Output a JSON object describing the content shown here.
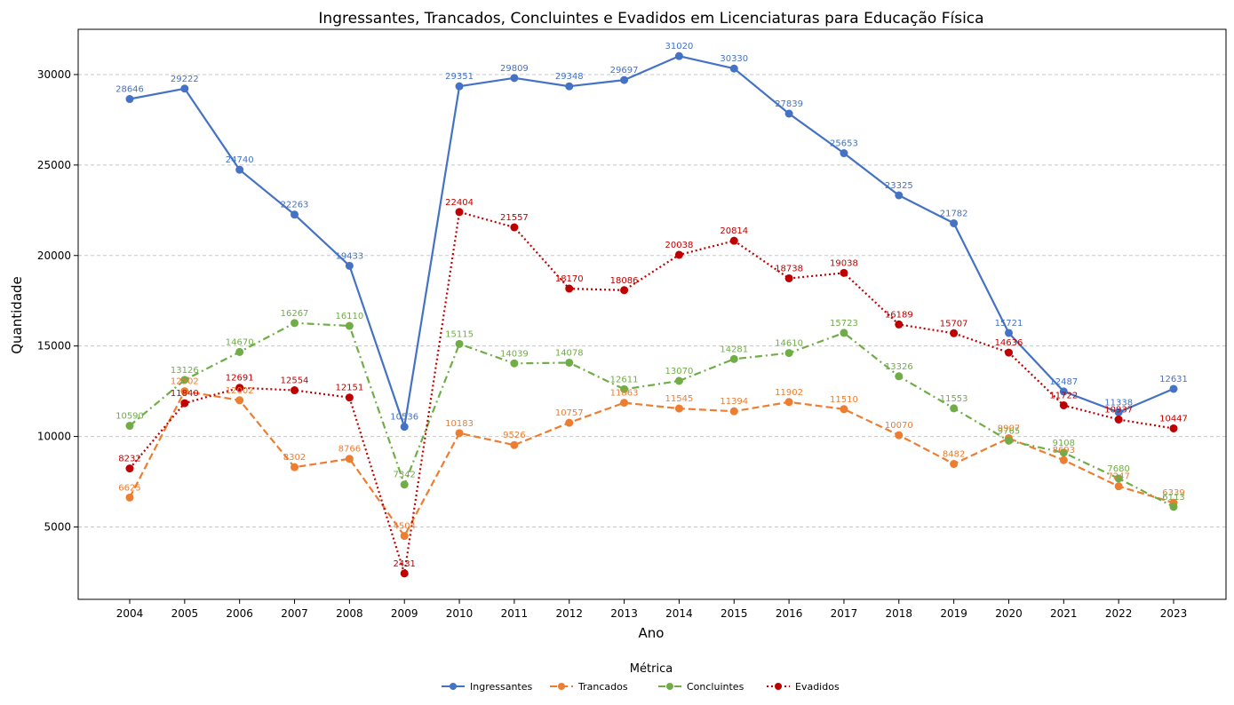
{
  "chart_data": {
    "type": "line",
    "title": "Ingressantes, Trancados, Concluintes e Evadidos em Licenciaturas para Educação Física",
    "xlabel": "Ano",
    "ylabel": "Quantidade",
    "x": [
      2004,
      2005,
      2006,
      2007,
      2008,
      2009,
      2010,
      2011,
      2012,
      2013,
      2014,
      2015,
      2016,
      2017,
      2018,
      2019,
      2020,
      2021,
      2022,
      2023
    ],
    "x_tick_labels": [
      "2004",
      "2005",
      "2006",
      "2007",
      "2008",
      "2009",
      "2010",
      "2011",
      "2012",
      "2013",
      "2014",
      "2015",
      "2016",
      "2017",
      "2018",
      "2019",
      "2020",
      "2021",
      "2022",
      "2023"
    ],
    "ylim": [
      1000,
      32500
    ],
    "yticks": [
      5000,
      10000,
      15000,
      20000,
      25000,
      30000
    ],
    "ytick_labels": [
      "5000",
      "10000",
      "15000",
      "20000",
      "25000",
      "30000"
    ],
    "grid": "y-dashed",
    "legend_title": "Métrica",
    "legend_position": "bottom-center",
    "series": [
      {
        "name": "Ingressantes",
        "color": "#4472c4",
        "dash": "solid",
        "values": [
          28646,
          29222,
          24740,
          22263,
          19433,
          10536,
          29351,
          29809,
          29348,
          29697,
          31020,
          30330,
          27839,
          25653,
          23325,
          21782,
          15721,
          12487,
          11338,
          12631
        ],
        "labels": [
          "28646",
          "29222",
          "24740",
          "22263",
          "19433",
          "10536",
          "29351",
          "29809",
          "29348",
          "29697",
          "31020",
          "30330",
          "27839",
          "25653",
          "23325",
          "21782",
          "15721",
          "12487",
          "11338",
          "12631"
        ]
      },
      {
        "name": "Trancados",
        "color": "#ed7d31",
        "dash": "dashed",
        "values": [
          6625,
          12502,
          12002,
          8302,
          8766,
          4504,
          10183,
          9526,
          10757,
          11863,
          11545,
          11394,
          11902,
          11510,
          10070,
          8482,
          9907,
          8693,
          7247,
          6339
        ],
        "labels": [
          "6625",
          "12502",
          "12002",
          "8302",
          "8766",
          "4504",
          "10183",
          "9526",
          "10757",
          "11863",
          "11545",
          "11394",
          "11902",
          "11510",
          "10070",
          "8482",
          "9907",
          "8693",
          "7247",
          "6339"
        ]
      },
      {
        "name": "Concluintes",
        "color": "#70ad47",
        "dash": "dashdot",
        "values": [
          10590,
          13126,
          14670,
          16267,
          16110,
          7342,
          15115,
          14039,
          14078,
          12611,
          13070,
          14281,
          14610,
          15723,
          13326,
          11553,
          9765,
          9108,
          7680,
          6113
        ],
        "labels": [
          "10590",
          "13126",
          "14670",
          "16267",
          "16110",
          "7342",
          "15115",
          "14039",
          "14078",
          "12611",
          "13070",
          "14281",
          "14610",
          "15723",
          "13326",
          "11553",
          "9765",
          "9108",
          "7680",
          "6113"
        ]
      },
      {
        "name": "Evadidos",
        "color": "#c00000",
        "dash": "dotted",
        "values": [
          8232,
          11840,
          12691,
          12554,
          12151,
          2431,
          22404,
          21557,
          18170,
          18086,
          20038,
          20814,
          18738,
          19038,
          16189,
          15707,
          14636,
          11722,
          10937,
          10447
        ],
        "labels": [
          "8232",
          "11840",
          "12691",
          "12554",
          "12151",
          "2431",
          "22404",
          "21557",
          "18170",
          "18086",
          "20038",
          "20814",
          "18738",
          "19038",
          "16189",
          "15707",
          "14636",
          "11722",
          "10937",
          "10447"
        ]
      }
    ]
  }
}
